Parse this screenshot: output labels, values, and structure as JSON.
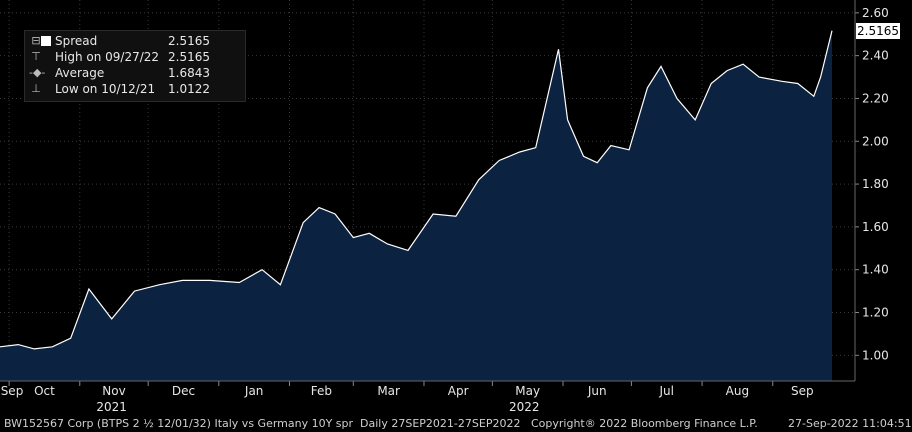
{
  "chart_data": {
    "type": "area",
    "series_name": "Spread",
    "ylim": [
      0.88,
      2.66
    ],
    "y_ticks": [
      "2.60",
      "2.40",
      "2.20",
      "2.00",
      "1.80",
      "1.60",
      "1.40",
      "1.20",
      "1.00"
    ],
    "x_month_labels": [
      "Sep",
      "Oct",
      "Nov",
      "Dec",
      "Jan",
      "Feb",
      "Mar",
      "Apr",
      "May",
      "Jun",
      "Jul",
      "Aug",
      "Sep"
    ],
    "x_year_labels": [
      "2021",
      "2022"
    ],
    "dates": [
      "2021-09-27",
      "2021-10-05",
      "2021-10-12",
      "2021-10-20",
      "2021-10-28",
      "2021-11-05",
      "2021-11-15",
      "2021-11-25",
      "2021-12-06",
      "2021-12-16",
      "2021-12-28",
      "2022-01-10",
      "2022-01-20",
      "2022-01-28",
      "2022-02-07",
      "2022-02-14",
      "2022-02-21",
      "2022-03-01",
      "2022-03-08",
      "2022-03-16",
      "2022-03-25",
      "2022-04-05",
      "2022-04-15",
      "2022-04-25",
      "2022-05-04",
      "2022-05-13",
      "2022-05-20",
      "2022-05-30",
      "2022-06-03",
      "2022-06-10",
      "2022-06-16",
      "2022-06-22",
      "2022-06-30",
      "2022-07-08",
      "2022-07-14",
      "2022-07-21",
      "2022-07-29",
      "2022-08-05",
      "2022-08-12",
      "2022-08-19",
      "2022-08-26",
      "2022-09-05",
      "2022-09-12",
      "2022-09-19",
      "2022-09-22",
      "2022-09-27"
    ],
    "values": [
      1.04,
      1.05,
      1.03,
      1.04,
      1.08,
      1.31,
      1.17,
      1.3,
      1.33,
      1.35,
      1.35,
      1.34,
      1.4,
      1.33,
      1.62,
      1.69,
      1.66,
      1.55,
      1.57,
      1.52,
      1.49,
      1.66,
      1.65,
      1.82,
      1.91,
      1.95,
      1.97,
      2.43,
      2.1,
      1.93,
      1.9,
      1.98,
      1.96,
      2.25,
      2.35,
      2.2,
      2.1,
      2.27,
      2.33,
      2.36,
      2.3,
      2.28,
      2.27,
      2.21,
      2.3,
      2.5165
    ],
    "legend": [
      {
        "label": "Spread",
        "value": "2.5165"
      },
      {
        "label": "High on 09/27/22",
        "value": "2.5165"
      },
      {
        "label": "Average",
        "value": "1.6843"
      },
      {
        "label": "Low on 10/12/21",
        "value": "1.0122"
      }
    ],
    "last_value": "2.5165",
    "colors": {
      "fill": "#0b2340",
      "line": "#ffffff",
      "background": "#000000",
      "grid": "#3a3a3a"
    }
  },
  "footer": {
    "security": "BW152567 Corp (BTPS 2 ½ 12/01/32) Italy vs Germany 10Y spr  Daily 27SEP2021-27SEP2022",
    "copyright": "Copyright® 2022 Bloomberg Finance L.P.",
    "timestamp": "27-Sep-2022 11:04:51"
  }
}
